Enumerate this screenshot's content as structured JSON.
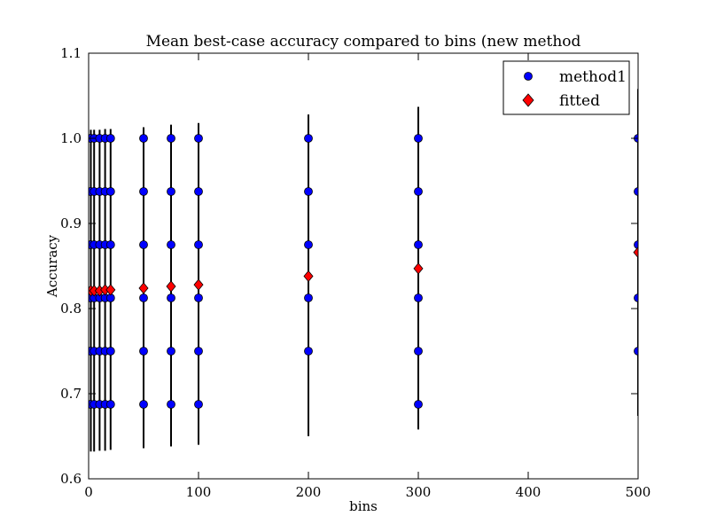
{
  "chart_data": {
    "type": "scatter",
    "title": "Mean best-case accuracy compared to bins (new method",
    "xlabel": "bins",
    "ylabel": "Accuracy",
    "xlim": [
      0,
      500
    ],
    "ylim": [
      0.6,
      1.1
    ],
    "xticks": [
      0,
      100,
      200,
      300,
      400,
      500
    ],
    "yticks": [
      0.6,
      0.7,
      0.8,
      0.9,
      1.0,
      1.1
    ],
    "legend_position": "top-right",
    "series": [
      {
        "name": "method1",
        "marker": "circle",
        "color": "#0000ff",
        "x": [
          2,
          2,
          2,
          2,
          2,
          2,
          5,
          5,
          5,
          5,
          5,
          5,
          10,
          10,
          10,
          10,
          10,
          10,
          15,
          15,
          15,
          15,
          15,
          15,
          20,
          20,
          20,
          20,
          20,
          20,
          50,
          50,
          50,
          50,
          50,
          50,
          75,
          75,
          75,
          75,
          75,
          75,
          100,
          100,
          100,
          100,
          100,
          100,
          200,
          200,
          200,
          200,
          200,
          300,
          300,
          300,
          300,
          300,
          300,
          500,
          500,
          500,
          500,
          500
        ],
        "y": [
          1.0,
          0.9375,
          0.875,
          0.8125,
          0.75,
          0.6875,
          1.0,
          0.9375,
          0.875,
          0.8125,
          0.75,
          0.6875,
          1.0,
          0.9375,
          0.875,
          0.8125,
          0.75,
          0.6875,
          1.0,
          0.9375,
          0.875,
          0.8125,
          0.75,
          0.6875,
          1.0,
          0.9375,
          0.875,
          0.8125,
          0.75,
          0.6875,
          1.0,
          0.9375,
          0.875,
          0.8125,
          0.75,
          0.6875,
          1.0,
          0.9375,
          0.875,
          0.8125,
          0.75,
          0.6875,
          1.0,
          0.9375,
          0.875,
          0.8125,
          0.75,
          0.6875,
          1.0,
          0.9375,
          0.875,
          0.8125,
          0.75,
          1.0,
          0.9375,
          0.875,
          0.8125,
          0.75,
          0.6875,
          1.0,
          0.9375,
          0.875,
          0.8125,
          0.75
        ]
      },
      {
        "name": "fitted",
        "marker": "diamond",
        "color": "#ff0000",
        "x": [
          2,
          5,
          10,
          15,
          20,
          50,
          75,
          100,
          200,
          300,
          500
        ],
        "y": [
          0.821,
          0.821,
          0.821,
          0.822,
          0.822,
          0.824,
          0.826,
          0.828,
          0.838,
          0.847,
          0.866
        ],
        "err_low": [
          0.632,
          0.632,
          0.633,
          0.633,
          0.634,
          0.636,
          0.638,
          0.64,
          0.65,
          0.658,
          0.674
        ],
        "err_high": [
          1.01,
          1.01,
          1.01,
          1.011,
          1.011,
          1.013,
          1.016,
          1.018,
          1.028,
          1.037,
          1.058
        ]
      }
    ]
  }
}
